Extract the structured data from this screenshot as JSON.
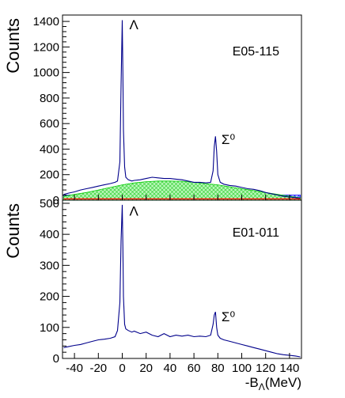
{
  "chart_data": [
    {
      "type": "line",
      "tag": "E05-115",
      "ylabel": "Counts",
      "xlim": [
        -50,
        150
      ],
      "ylim": [
        0,
        1450
      ],
      "yticks": [
        0,
        200,
        400,
        600,
        800,
        1000,
        1200,
        1400
      ],
      "ytick_labels": [
        "0",
        "200",
        "400",
        "600",
        "800",
        "1000",
        "1200",
        "1400"
      ],
      "annotations": [
        {
          "text": "Λ",
          "x": 6,
          "y": 1340
        },
        {
          "text": "Σ⁰",
          "x": 83,
          "y": 440
        }
      ],
      "series": [
        {
          "color": "#00008b",
          "x": [
            -49,
            -45,
            -40,
            -35,
            -30,
            -25,
            -20,
            -15,
            -10,
            -6,
            -4,
            -2,
            -1,
            0,
            0.5,
            1,
            2,
            3,
            5,
            8,
            10,
            15,
            20,
            25,
            30,
            35,
            40,
            45,
            50,
            55,
            60,
            65,
            70,
            74,
            76,
            77,
            78,
            79,
            80,
            82,
            85,
            90,
            95,
            100,
            105,
            110,
            115,
            120,
            125,
            130,
            135,
            140,
            145,
            149
          ],
          "y": [
            45,
            55,
            65,
            80,
            90,
            100,
            110,
            120,
            130,
            140,
            150,
            300,
            900,
            1410,
            1000,
            550,
            260,
            180,
            160,
            150,
            155,
            160,
            170,
            180,
            175,
            170,
            170,
            165,
            160,
            150,
            140,
            140,
            135,
            140,
            230,
            420,
            500,
            380,
            200,
            140,
            125,
            115,
            110,
            100,
            90,
            85,
            75,
            60,
            50,
            40,
            30,
            25,
            20,
            15
          ]
        },
        {
          "color": "#00cc00",
          "fill": "#9ef59e",
          "x": [
            -49,
            -40,
            -30,
            -20,
            -10,
            0,
            10,
            20,
            30,
            40,
            50,
            60,
            70,
            80,
            90,
            100,
            110,
            120,
            130,
            140,
            149
          ],
          "y": [
            30,
            45,
            60,
            80,
            100,
            120,
            135,
            145,
            150,
            150,
            148,
            140,
            130,
            120,
            105,
            90,
            75,
            60,
            45,
            30,
            20
          ]
        },
        {
          "color": "#0000ff",
          "fill": "#aaaaff",
          "x": [
            -49,
            149
          ],
          "y": [
            40,
            40
          ]
        },
        {
          "color": "#ff0000",
          "x": [
            -49,
            149
          ],
          "y": [
            10,
            10
          ]
        }
      ]
    },
    {
      "type": "line",
      "tag": "E01-011",
      "ylabel": "Counts",
      "xlabel": "-B",
      "xlabel_sub": "Λ",
      "xlabel_unit": "(MeV)",
      "xlim": [
        -50,
        150
      ],
      "ylim": [
        0,
        510
      ],
      "yticks": [
        0,
        100,
        200,
        300,
        400,
        500
      ],
      "ytick_labels": [
        "0",
        "100",
        "200",
        "300",
        "400",
        "500"
      ],
      "xticks": [
        -40,
        -20,
        0,
        20,
        40,
        60,
        80,
        100,
        120,
        140
      ],
      "xtick_labels": [
        "-40",
        "-20",
        "0",
        "20",
        "40",
        "60",
        "80",
        "100",
        "120",
        "140"
      ],
      "annotations": [
        {
          "text": "Λ",
          "x": 6,
          "y": 460
        },
        {
          "text": "Σ⁰",
          "x": 83,
          "y": 120
        }
      ],
      "series": [
        {
          "color": "#00008b",
          "x": [
            -49,
            -45,
            -40,
            -35,
            -30,
            -25,
            -20,
            -15,
            -10,
            -6,
            -4,
            -2,
            -1,
            0,
            0.5,
            1,
            2,
            3,
            5,
            8,
            10,
            15,
            20,
            25,
            30,
            35,
            40,
            45,
            50,
            55,
            60,
            65,
            70,
            74,
            76,
            77,
            78,
            79,
            80,
            82,
            85,
            90,
            95,
            100,
            105,
            110,
            115,
            120,
            125,
            130,
            135,
            140,
            145,
            149
          ],
          "y": [
            35,
            38,
            42,
            45,
            50,
            55,
            60,
            62,
            65,
            70,
            90,
            180,
            380,
            495,
            360,
            200,
            110,
            95,
            90,
            85,
            88,
            80,
            85,
            75,
            70,
            80,
            70,
            75,
            72,
            75,
            70,
            72,
            70,
            75,
            110,
            140,
            150,
            100,
            75,
            65,
            60,
            55,
            50,
            45,
            40,
            35,
            30,
            25,
            20,
            15,
            12,
            10,
            8,
            5
          ]
        }
      ]
    }
  ]
}
